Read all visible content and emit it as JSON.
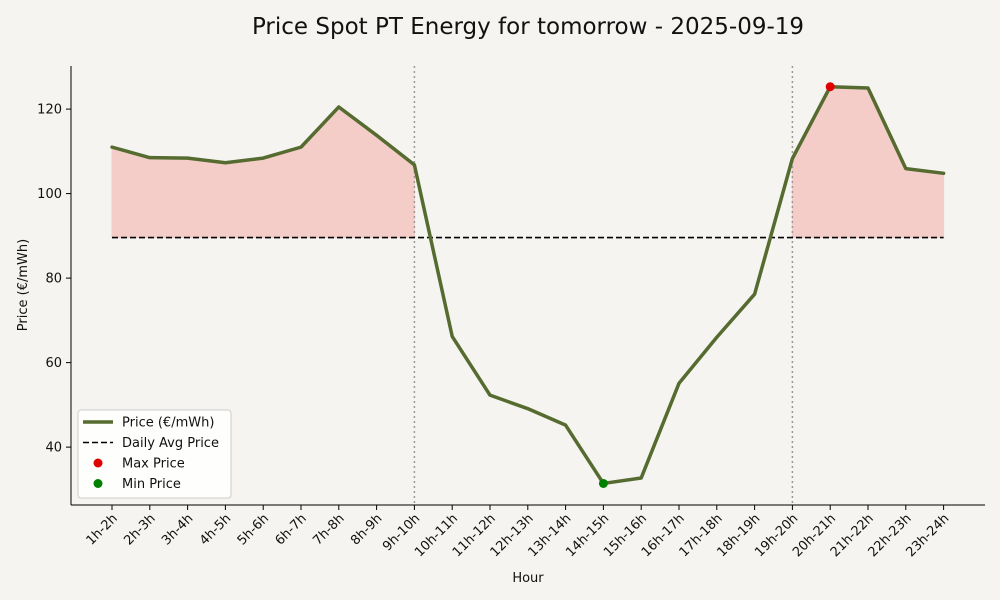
{
  "colors": {
    "background": "#f5f4f0",
    "price_line": "#556b2f",
    "fill_above_avg": "#f4c7c3",
    "avg_line": "#000000",
    "max_marker": "#e00000",
    "min_marker": "#008000",
    "vline": "#999999"
  },
  "chart_data": {
    "type": "line",
    "title": "Price Spot PT Energy for tomorrow - 2025-09-19",
    "xlabel": "Hour",
    "ylabel": "Price (€/mWh)",
    "categories": [
      "1h-2h",
      "2h-3h",
      "3h-4h",
      "4h-5h",
      "5h-6h",
      "6h-7h",
      "7h-8h",
      "8h-9h",
      "9h-10h",
      "10h-11h",
      "11h-12h",
      "12h-13h",
      "13h-14h",
      "14h-15h",
      "15h-16h",
      "16h-17h",
      "17h-18h",
      "18h-19h",
      "19h-20h",
      "20h-21h",
      "21h-22h",
      "22h-23h",
      "23h-24h"
    ],
    "series": [
      {
        "name": "Price (€/mWh)",
        "values": [
          111.0,
          108.5,
          108.4,
          107.3,
          108.4,
          111.0,
          120.5,
          113.8,
          106.8,
          66.2,
          52.3,
          49.1,
          45.2,
          31.4,
          32.7,
          55.1,
          66.0,
          76.2,
          108.3,
          125.3,
          125.0,
          105.9,
          104.8
        ]
      }
    ],
    "daily_avg": 89.6,
    "max": {
      "category": "20h-21h",
      "value": 125.3
    },
    "min": {
      "category": "14h-15h",
      "value": 31.4
    },
    "vertical_markers": [
      "9h-10h",
      "19h-20h"
    ],
    "shaded_ranges": [
      [
        "1h-2h",
        "9h-10h"
      ],
      [
        "19h-20h",
        "23h-24h"
      ]
    ],
    "ylim": [
      26.3,
      130.2
    ],
    "yticks": [
      40,
      60,
      80,
      100,
      120
    ],
    "grid": false,
    "legend": {
      "placement": "lower-left",
      "entries": [
        {
          "label": "Price (€/mWh)",
          "kind": "line"
        },
        {
          "label": "Daily Avg Price",
          "kind": "dashed"
        },
        {
          "label": "Max Price",
          "kind": "max-dot"
        },
        {
          "label": "Min Price",
          "kind": "min-dot"
        }
      ]
    }
  }
}
